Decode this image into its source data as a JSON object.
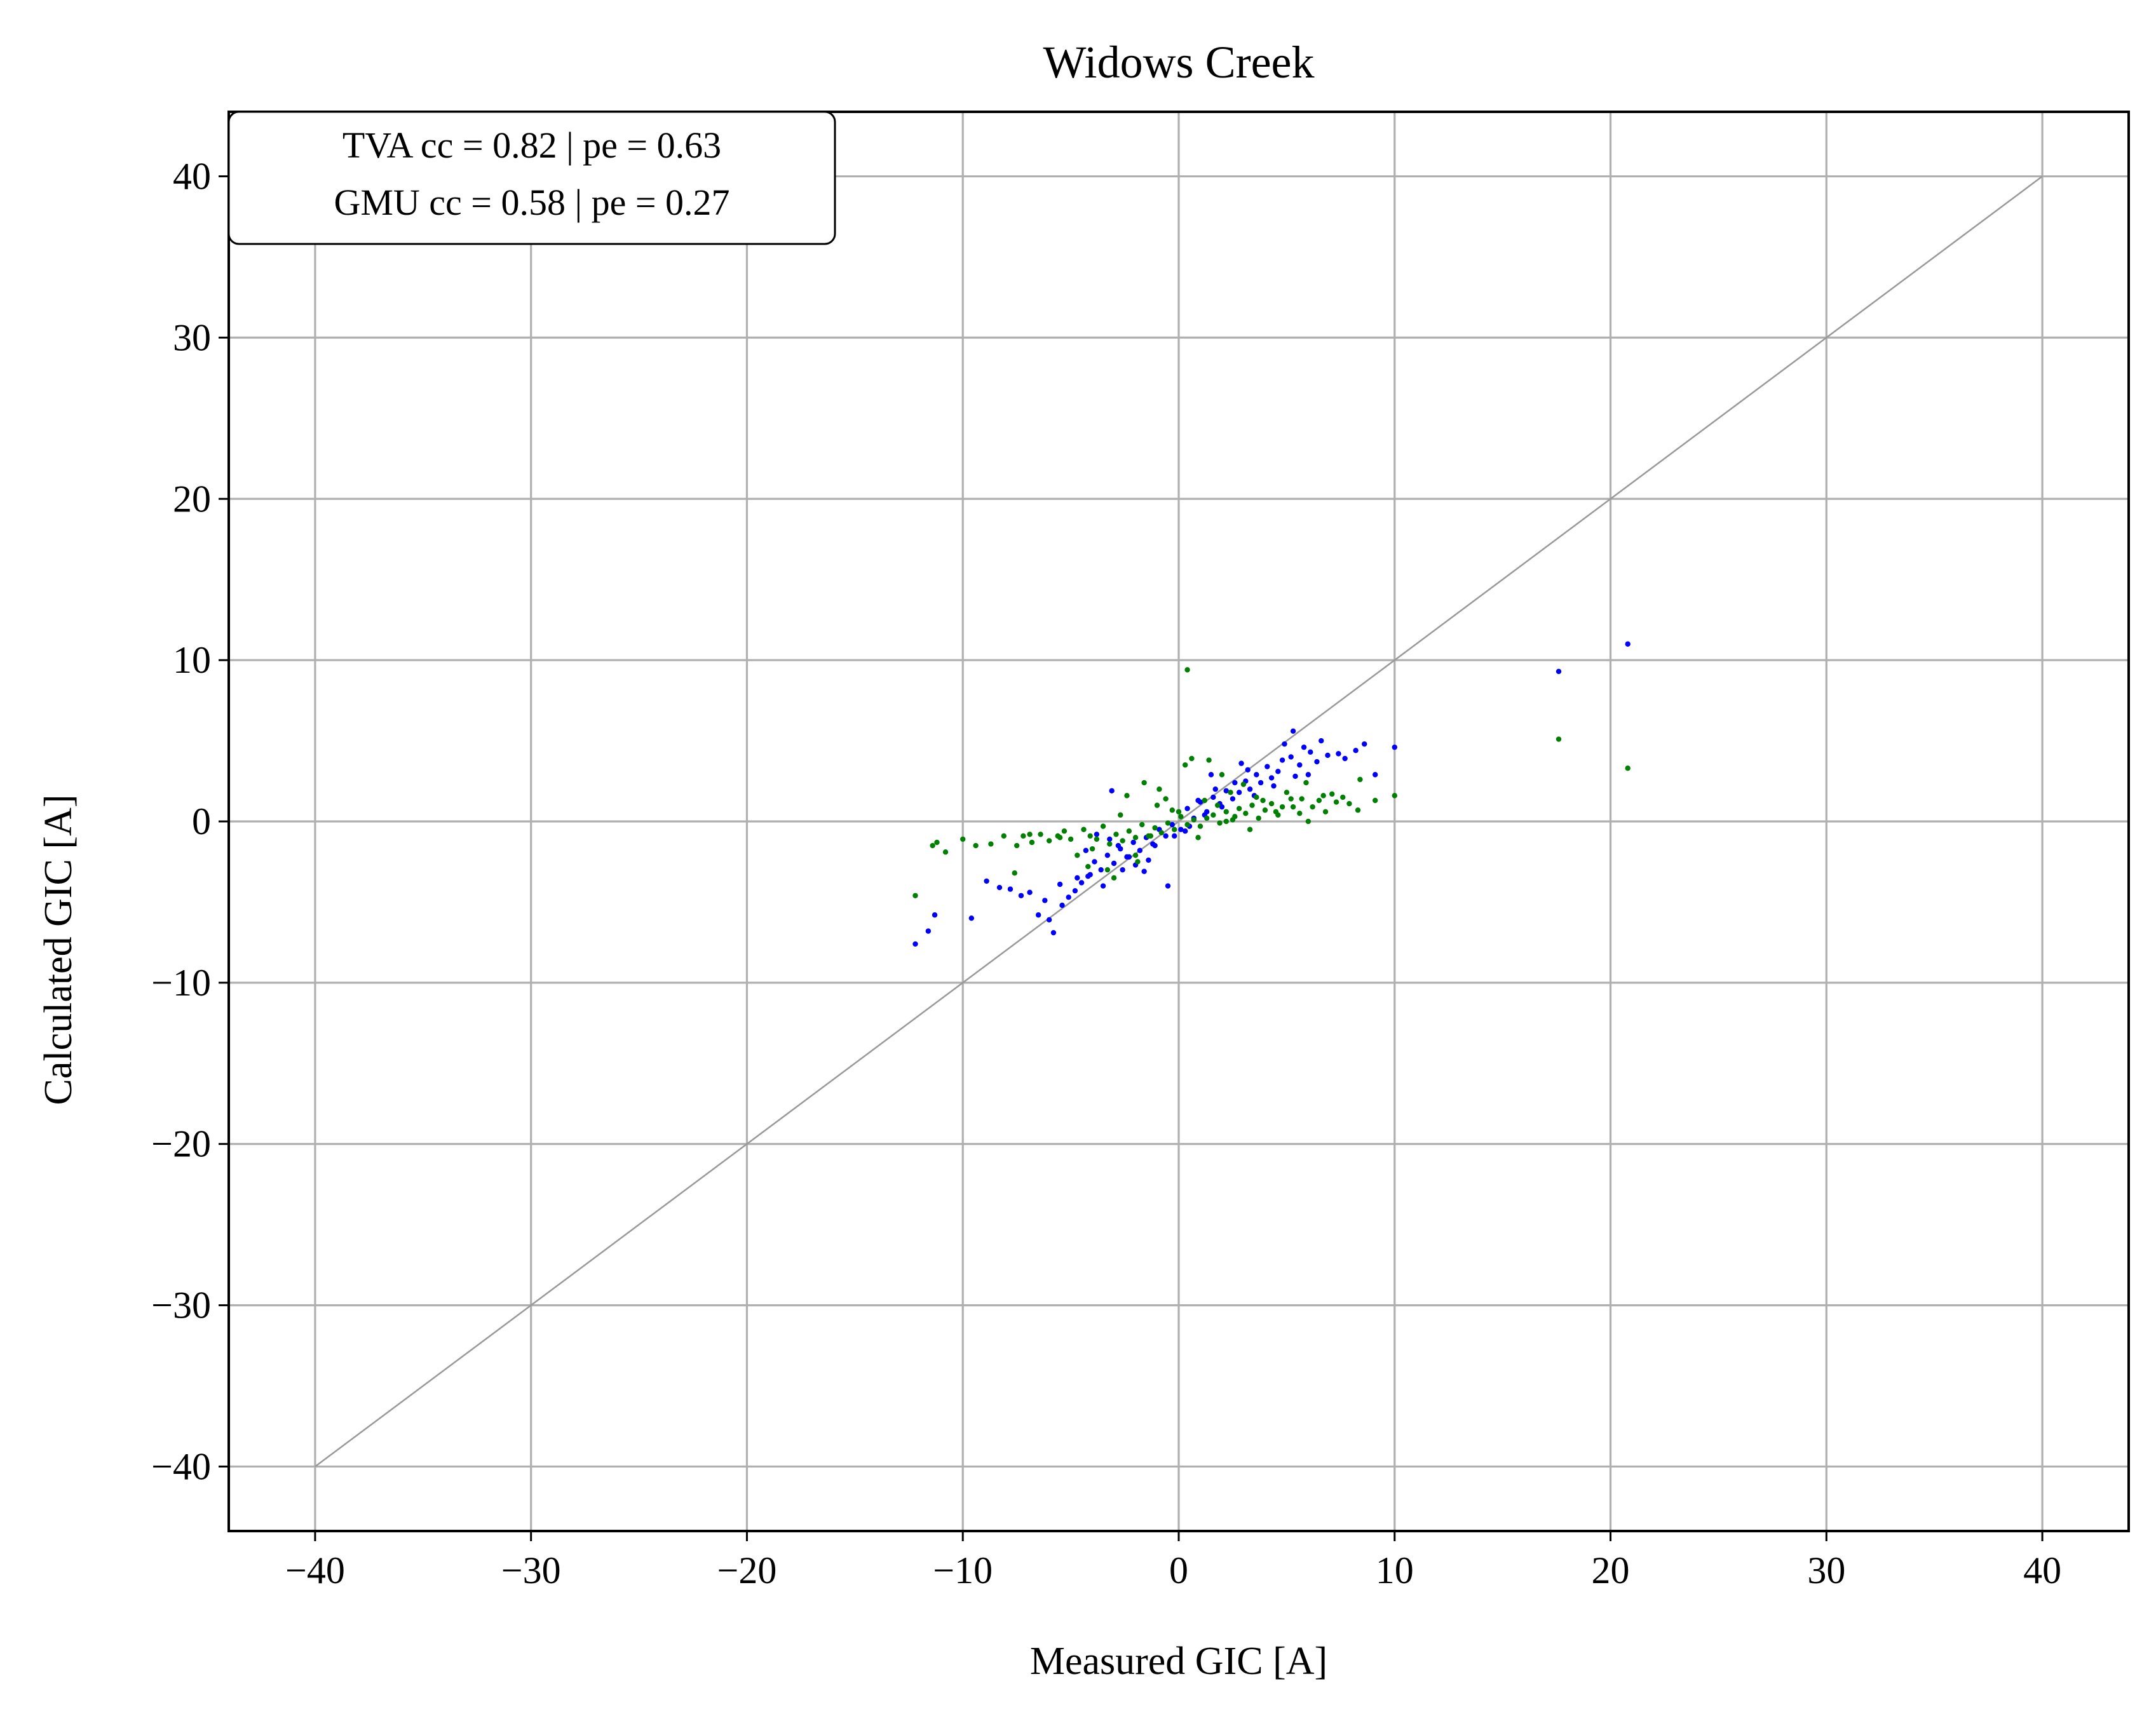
{
  "chart_data": {
    "type": "scatter",
    "title": "Widows Creek",
    "xlabel": "Measured GIC [A]",
    "ylabel": "Calculated GIC [A]",
    "xlim": [
      -44,
      44
    ],
    "ylim": [
      -44,
      44
    ],
    "xticks": [
      -40,
      -30,
      -20,
      -10,
      0,
      10,
      20,
      30,
      40
    ],
    "yticks": [
      -40,
      -30,
      -20,
      -10,
      0,
      10,
      20,
      30,
      40
    ],
    "xtick_labels": [
      "−40",
      "−30",
      "−20",
      "−10",
      "0",
      "10",
      "20",
      "30",
      "40"
    ],
    "ytick_labels": [
      "−40",
      "−30",
      "−20",
      "−10",
      "0",
      "10",
      "20",
      "30",
      "40"
    ],
    "grid": true,
    "reference_line": {
      "x": [
        -40,
        40
      ],
      "y": [
        -40,
        40
      ],
      "color": "#999999"
    },
    "annotation": {
      "lines": [
        "TVA cc = 0.82 | pe = 0.63",
        "GMU cc = 0.58 | pe = 0.27"
      ],
      "placement": "top-left"
    },
    "series": [
      {
        "color": "#0000ff",
        "x": [
          20.8,
          17.6,
          10.0,
          9.1,
          8.6,
          8.2,
          7.7,
          7.4,
          6.9,
          6.4,
          6.1,
          5.8,
          5.6,
          5.4,
          5.2,
          4.9,
          4.6,
          4.3,
          4.1,
          3.8,
          3.6,
          3.3,
          3.1,
          2.8,
          2.5,
          2.2,
          1.9,
          1.6,
          1.3,
          1.0,
          0.7,
          0.4,
          0.1,
          -0.3,
          -0.6,
          -0.9,
          -1.2,
          -1.5,
          -1.8,
          -2.1,
          -2.4,
          -2.7,
          -3.0,
          -3.3,
          -3.6,
          -3.9,
          -4.2,
          -4.5,
          -4.8,
          -5.1,
          -5.4,
          -5.8,
          -6.2,
          -6.5,
          -6.9,
          -7.3,
          -7.8,
          -8.3,
          -8.9,
          -9.6,
          -11.3,
          -11.6,
          -12.2,
          5.3,
          4.8,
          3.2,
          2.6,
          1.7,
          0.9,
          -0.2,
          -1.1,
          -2.0,
          -2.8,
          -3.5,
          -4.1,
          -4.7,
          -5.5,
          -6.0,
          6.6,
          6.0,
          4.4,
          2.0,
          0.3,
          -1.6,
          -3.2,
          -0.5,
          -2.3,
          -3.8,
          3.5,
          1.2,
          0.5,
          -1.4,
          -2.6,
          -4.3,
          -3.1,
          2.9,
          1.5
        ],
        "y": [
          11.0,
          9.3,
          4.6,
          2.9,
          4.8,
          4.4,
          3.9,
          4.2,
          4.1,
          3.7,
          4.3,
          4.6,
          3.5,
          2.8,
          4.0,
          4.8,
          3.1,
          2.7,
          3.4,
          2.4,
          2.9,
          2.0,
          2.5,
          1.8,
          1.4,
          1.9,
          1.1,
          1.5,
          0.6,
          1.2,
          0.2,
          0.8,
          -0.5,
          -0.2,
          -0.9,
          -0.5,
          -1.4,
          -1.0,
          -1.8,
          -1.3,
          -2.2,
          -1.7,
          -2.6,
          -2.1,
          -3.0,
          -2.5,
          -3.4,
          -3.8,
          -4.3,
          -4.7,
          -5.2,
          -6.9,
          -4.9,
          -5.8,
          -4.4,
          -4.6,
          -4.2,
          -4.1,
          -3.7,
          -6.0,
          -5.8,
          -6.8,
          -7.6,
          5.6,
          3.8,
          3.2,
          2.4,
          2.0,
          1.3,
          -0.9,
          -1.5,
          -2.7,
          -1.5,
          -4.0,
          -3.3,
          -3.5,
          -3.9,
          -6.1,
          5.0,
          2.9,
          2.2,
          0.9,
          -0.6,
          -3.1,
          -1.1,
          -4.0,
          -2.2,
          -0.8,
          1.6,
          0.4,
          -0.3,
          -2.4,
          -3.0,
          -1.8,
          1.9,
          3.6,
          2.9
        ]
      },
      {
        "color": "#008000",
        "x": [
          20.8,
          17.6,
          10.0,
          9.1,
          8.4,
          7.9,
          7.6,
          7.3,
          6.8,
          6.5,
          6.2,
          5.9,
          5.6,
          5.3,
          5.0,
          4.6,
          4.3,
          4.0,
          3.7,
          3.4,
          3.1,
          2.8,
          2.5,
          2.2,
          1.9,
          1.6,
          1.3,
          1.0,
          0.7,
          0.4,
          0.1,
          -0.2,
          -0.5,
          -0.8,
          -1.1,
          -1.4,
          -1.7,
          -2.0,
          -2.3,
          -2.6,
          -2.9,
          -3.2,
          -3.5,
          -3.8,
          -4.1,
          -4.4,
          -4.7,
          -5.0,
          -5.3,
          -5.6,
          -6.0,
          -6.4,
          -6.8,
          -7.2,
          -7.6,
          -8.1,
          -8.7,
          -9.4,
          -10.0,
          -10.8,
          -11.2,
          -11.4,
          -12.2,
          0.4,
          0.3,
          1.4,
          2.0,
          3.0,
          4.5,
          5.7,
          6.7,
          7.1,
          8.3,
          3.6,
          2.4,
          1.2,
          0.6,
          -0.6,
          -1.6,
          -2.4,
          -3.3,
          -4.2,
          -5.5,
          -6.9,
          -7.5,
          -1.0,
          -2.0,
          -3.0,
          1.8,
          2.6,
          3.3,
          4.8,
          0.9,
          -0.3,
          -1.9,
          -2.7,
          -4.0,
          5.2,
          6.0,
          0.0,
          -0.9,
          -1.3,
          2.2,
          3.9
        ],
        "y": [
          3.3,
          5.1,
          1.6,
          1.3,
          2.6,
          1.1,
          1.5,
          1.2,
          0.6,
          1.3,
          0.9,
          2.4,
          0.5,
          0.9,
          1.8,
          0.4,
          1.1,
          0.7,
          0.2,
          1.0,
          0.5,
          0.8,
          0.1,
          0.6,
          -0.1,
          0.4,
          0.2,
          -0.3,
          0.1,
          -0.2,
          0.3,
          -0.5,
          -0.1,
          -0.7,
          -0.4,
          -0.9,
          -0.2,
          -1.0,
          -0.6,
          -1.2,
          -0.8,
          -1.4,
          -0.3,
          -1.1,
          -0.9,
          -0.5,
          -2.1,
          -1.1,
          -0.6,
          -0.9,
          -1.2,
          -0.8,
          -1.3,
          -0.9,
          -3.2,
          -0.9,
          -1.4,
          -1.5,
          -1.1,
          -1.9,
          -1.3,
          -1.5,
          -4.6,
          9.4,
          3.5,
          3.8,
          2.9,
          2.3,
          0.6,
          1.4,
          1.6,
          1.7,
          0.7,
          1.5,
          1.8,
          1.3,
          3.9,
          1.4,
          2.4,
          1.6,
          -3.0,
          -2.8,
          -1.0,
          -0.8,
          -1.5,
          1.0,
          -2.1,
          -3.5,
          1.0,
          0.3,
          -0.5,
          0.9,
          -1.0,
          0.7,
          -2.5,
          0.4,
          -1.7,
          1.4,
          0.0,
          0.6,
          2.0,
          -0.9,
          0.0,
          1.3
        ]
      }
    ]
  }
}
